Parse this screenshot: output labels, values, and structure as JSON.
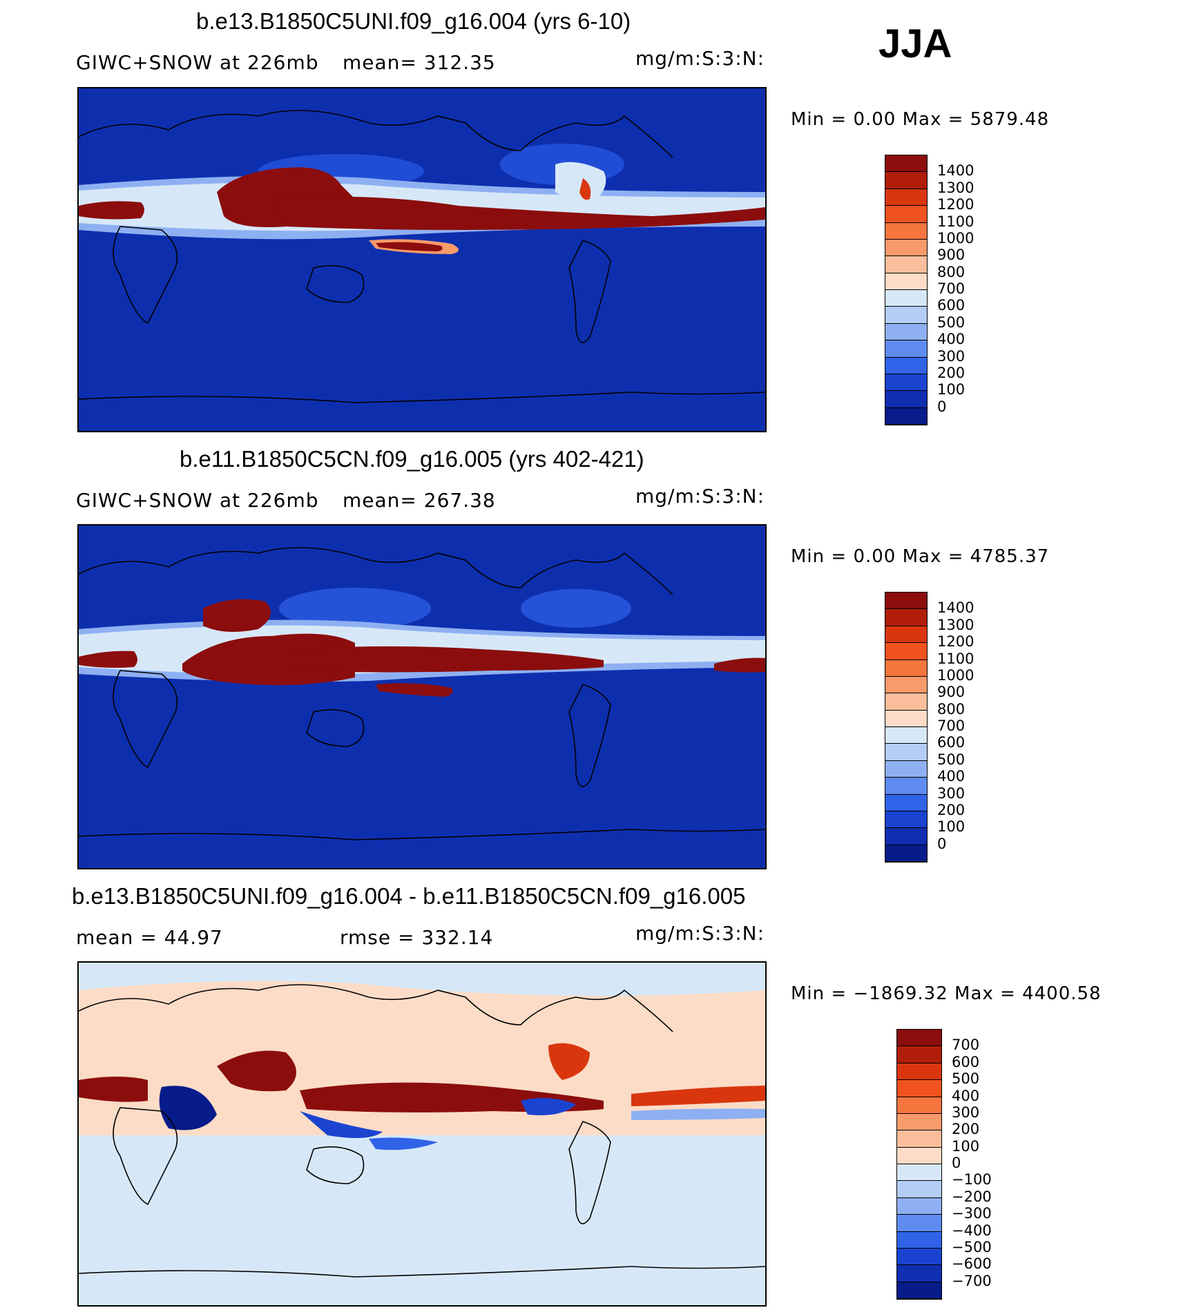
{
  "season": "JJA",
  "panels": [
    {
      "title": "b.e13.B1850C5UNI.f09_g16.004 (yrs 6-10)",
      "left_label": "GIWC+SNOW at 226mb",
      "mid_label": "mean= 312.35",
      "units": "mg/m:S:3:N:",
      "minmax": "Min =    0.00 Max = 5879.48",
      "bg": "#0d2fae",
      "legend": {
        "labels": [
          "1400",
          "1300",
          "1200",
          "1100",
          "1000",
          "900",
          "800",
          "700",
          "600",
          "500",
          "400",
          "300",
          "200",
          "100",
          "0"
        ],
        "colors": [
          "#8c0d0d",
          "#b01e0a",
          "#d9360e",
          "#f0531e",
          "#f7753f",
          "#f99a6a",
          "#fbbe9c",
          "#fcdcc6",
          "#d6e8f8",
          "#b3cdf5",
          "#8eb0f2",
          "#5f8bf0",
          "#3063e8",
          "#1a44d0",
          "#0f2eb0",
          "#071b8a"
        ]
      },
      "map_bg": "base",
      "blobs": "p1"
    },
    {
      "title": "b.e11.B1850C5CN.f09_g16.005 (yrs 402-421)",
      "left_label": "GIWC+SNOW at 226mb",
      "mid_label": "mean= 267.38",
      "units": "mg/m:S:3:N:",
      "minmax": "Min =    0.00 Max = 4785.37",
      "legend": {
        "labels": [
          "1400",
          "1300",
          "1200",
          "1100",
          "1000",
          "900",
          "800",
          "700",
          "600",
          "500",
          "400",
          "300",
          "200",
          "100",
          "0"
        ],
        "colors": [
          "#8c0d0d",
          "#b01e0a",
          "#d9360e",
          "#f0531e",
          "#f7753f",
          "#f99a6a",
          "#fbbe9c",
          "#fcdcc6",
          "#d6e8f8",
          "#b3cdf5",
          "#8eb0f2",
          "#5f8bf0",
          "#3063e8",
          "#1a44d0",
          "#0f2eb0",
          "#071b8a"
        ]
      },
      "blobs": "p2"
    },
    {
      "title": "b.e13.B1850C5UNI.f09_g16.004 - b.e11.B1850C5CN.f09_g16.005",
      "left_label": "mean =    44.97",
      "mid_label": "rmse = 332.14",
      "units": "mg/m:S:3:N:",
      "minmax": "Min = −1869.32 Max = 4400.58",
      "legend": {
        "labels": [
          "700",
          "600",
          "500",
          "400",
          "300",
          "200",
          "100",
          "0",
          "−100",
          "−200",
          "−300",
          "−400",
          "−500",
          "−600",
          "−700"
        ],
        "colors": [
          "#8c0d0d",
          "#b01e0a",
          "#d9360e",
          "#f0531e",
          "#f7753f",
          "#f99a6a",
          "#fbbe9c",
          "#fcdcc6",
          "#d6e8f8",
          "#b3cdf5",
          "#8eb0f2",
          "#5f8bf0",
          "#3063e8",
          "#1a44d0",
          "#0f2eb0",
          "#071b8a"
        ]
      },
      "blobs": "p3"
    }
  ]
}
